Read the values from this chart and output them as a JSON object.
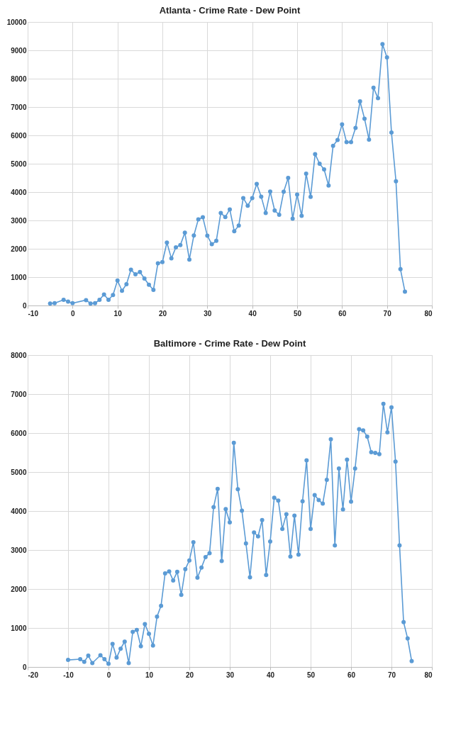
{
  "chart_data": [
    {
      "type": "line",
      "title": "Atlanta - Crime Rate - Dew Point",
      "color": "#5b9bd5",
      "marker": "circle",
      "grid": true,
      "x": [
        -5,
        -4,
        -2,
        -1,
        0,
        3,
        4,
        5,
        6,
        7,
        8,
        9,
        10,
        11,
        12,
        13,
        14,
        15,
        16,
        17,
        18,
        19,
        20,
        21,
        22,
        23,
        24,
        25,
        26,
        27,
        28,
        29,
        30,
        31,
        32,
        33,
        34,
        35,
        36,
        37,
        38,
        39,
        40,
        41,
        42,
        43,
        44,
        45,
        46,
        47,
        48,
        49,
        50,
        51,
        52,
        53,
        54,
        55,
        56,
        57,
        58,
        59,
        60,
        61,
        62,
        63,
        64,
        65,
        66,
        67,
        68,
        69,
        70,
        71,
        72,
        73,
        74
      ],
      "values": [
        70,
        80,
        200,
        140,
        80,
        190,
        70,
        80,
        200,
        390,
        200,
        370,
        880,
        520,
        750,
        1260,
        1100,
        1180,
        950,
        730,
        550,
        1490,
        1530,
        2220,
        1660,
        2050,
        2130,
        2570,
        1620,
        2470,
        3040,
        3110,
        2460,
        2160,
        2280,
        3260,
        3120,
        3390,
        2620,
        2820,
        3790,
        3520,
        3790,
        4290,
        3840,
        3260,
        4020,
        3350,
        3200,
        4010,
        4500,
        3060,
        3910,
        3160,
        4650,
        3830,
        5340,
        5000,
        4800,
        4230,
        5630,
        5840,
        6390,
        5760,
        5760,
        6260,
        7200,
        6590,
        5850,
        7680,
        7310,
        9220,
        8750,
        6100,
        4380,
        1280,
        490
      ],
      "xlim": [
        -10,
        80
      ],
      "xticks": [
        -10,
        0,
        10,
        20,
        30,
        40,
        50,
        60,
        70,
        80
      ],
      "ylim": [
        0,
        10000
      ],
      "yticks": [
        0,
        1000,
        2000,
        3000,
        4000,
        5000,
        6000,
        7000,
        8000,
        9000,
        10000
      ]
    },
    {
      "type": "line",
      "title": "Baltimore - Crime Rate - Dew Point",
      "color": "#5b9bd5",
      "marker": "circle",
      "grid": true,
      "x": [
        -10,
        -7,
        -6,
        -5,
        -4,
        -2,
        -1,
        0,
        1,
        2,
        3,
        4,
        5,
        6,
        7,
        8,
        9,
        10,
        11,
        12,
        13,
        14,
        15,
        16,
        17,
        18,
        19,
        20,
        21,
        22,
        23,
        24,
        25,
        26,
        27,
        28,
        29,
        30,
        31,
        32,
        33,
        34,
        35,
        36,
        37,
        38,
        39,
        40,
        41,
        42,
        43,
        44,
        45,
        46,
        47,
        48,
        49,
        50,
        51,
        52,
        53,
        54,
        55,
        56,
        57,
        58,
        59,
        60,
        61,
        62,
        63,
        64,
        65,
        66,
        67,
        68,
        69,
        70,
        71,
        72,
        73,
        74,
        75
      ],
      "values": [
        180,
        200,
        130,
        290,
        100,
        300,
        200,
        80,
        590,
        240,
        470,
        650,
        100,
        900,
        950,
        530,
        1100,
        850,
        550,
        1290,
        1570,
        2400,
        2450,
        2220,
        2440,
        1850,
        2510,
        2730,
        3200,
        2290,
        2550,
        2820,
        2920,
        4100,
        4570,
        2720,
        4050,
        3710,
        5750,
        4560,
        4010,
        3170,
        2300,
        3450,
        3350,
        3770,
        2360,
        3220,
        4340,
        4270,
        3540,
        3920,
        2830,
        3880,
        2880,
        4250,
        5300,
        3540,
        4410,
        4280,
        4190,
        4800,
        5840,
        3120,
        5090,
        4040,
        5320,
        4240,
        5090,
        6100,
        6070,
        5910,
        5510,
        5490,
        5460,
        6750,
        6020,
        6660,
        5270,
        3120,
        1150,
        730,
        150
      ],
      "xlim": [
        -20,
        80
      ],
      "xticks": [
        -20,
        -10,
        0,
        10,
        20,
        30,
        40,
        50,
        60,
        70,
        80
      ],
      "ylim": [
        0,
        8000
      ],
      "yticks": [
        0,
        1000,
        2000,
        3000,
        4000,
        5000,
        6000,
        7000,
        8000
      ]
    }
  ]
}
